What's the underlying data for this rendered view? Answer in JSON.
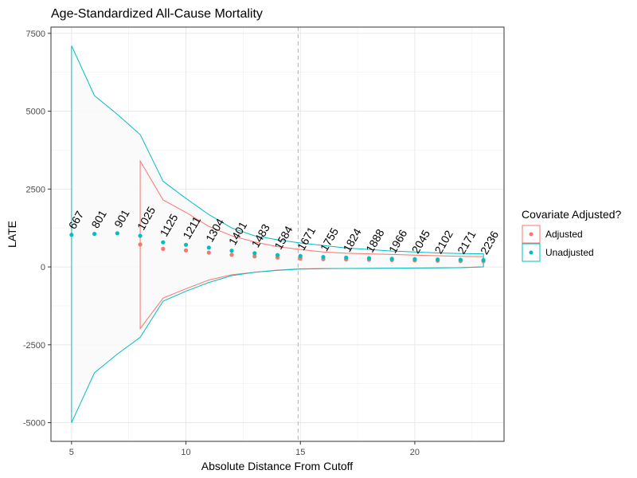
{
  "chart_data": {
    "type": "scatter",
    "title": "Age-Standardized All-Cause Mortality",
    "xlabel": "Absolute Distance From Cutoff",
    "ylabel": "LATE",
    "xlim": [
      4.1,
      23.9
    ],
    "ylim": [
      -5600,
      7700
    ],
    "x_ticks": [
      5,
      10,
      15,
      20
    ],
    "y_ticks": [
      -5000,
      -2500,
      0,
      2500,
      5000,
      7500
    ],
    "grid": true,
    "cutoff_line_x": 14.9,
    "legend": {
      "title": "Covariate Adjusted?",
      "position": "right",
      "entries": [
        "Adjusted",
        "Unadjusted"
      ]
    },
    "colors": {
      "Adjusted": "#F8766D",
      "Unadjusted": "#00BFC4",
      "ribbon": "#f9f9f9",
      "cutoff": "#b3b3b3"
    },
    "x": [
      5,
      6,
      7,
      8,
      9,
      10,
      11,
      12,
      13,
      14,
      15,
      16,
      17,
      18,
      19,
      20,
      21,
      22,
      23
    ],
    "n_labels": [
      "667",
      "801",
      "901",
      "1025",
      "1125",
      "1211",
      "1304",
      "1401",
      "1483",
      "1584",
      "1671",
      "1755",
      "1824",
      "1888",
      "1966",
      "2045",
      "2102",
      "2171",
      "2236"
    ],
    "series": [
      {
        "name": "Adjusted",
        "points": [
          [
            8,
            720
          ],
          [
            9,
            580
          ],
          [
            10,
            530
          ],
          [
            11,
            460
          ],
          [
            12,
            390
          ],
          [
            13,
            340
          ],
          [
            14,
            300
          ],
          [
            15,
            270
          ],
          [
            16,
            250
          ],
          [
            17,
            240
          ],
          [
            18,
            230
          ],
          [
            19,
            220
          ],
          [
            20,
            210
          ],
          [
            21,
            200
          ],
          [
            22,
            190
          ],
          [
            23,
            180
          ]
        ],
        "upper": [
          [
            8,
            3400
          ],
          [
            9,
            2150
          ],
          [
            10,
            1750
          ],
          [
            11,
            1300
          ],
          [
            12,
            1000
          ],
          [
            13,
            800
          ],
          [
            14,
            650
          ],
          [
            15,
            560
          ],
          [
            16,
            480
          ],
          [
            17,
            440
          ],
          [
            18,
            420
          ],
          [
            19,
            400
          ],
          [
            20,
            380
          ],
          [
            21,
            360
          ],
          [
            22,
            340
          ],
          [
            23,
            330
          ]
        ],
        "lower": [
          [
            8,
            -1980
          ],
          [
            9,
            -1000
          ],
          [
            10,
            -700
          ],
          [
            11,
            -420
          ],
          [
            12,
            -250
          ],
          [
            13,
            -170
          ],
          [
            14,
            -100
          ],
          [
            15,
            -60
          ],
          [
            16,
            -50
          ],
          [
            17,
            -50
          ],
          [
            18,
            -50
          ],
          [
            19,
            -40
          ],
          [
            20,
            -40
          ],
          [
            21,
            -30
          ],
          [
            22,
            -20
          ],
          [
            23,
            0
          ]
        ]
      },
      {
        "name": "Unadjusted",
        "points": [
          [
            5,
            1030
          ],
          [
            6,
            1060
          ],
          [
            7,
            1080
          ],
          [
            8,
            1000
          ],
          [
            9,
            790
          ],
          [
            10,
            710
          ],
          [
            11,
            620
          ],
          [
            12,
            520
          ],
          [
            13,
            440
          ],
          [
            14,
            380
          ],
          [
            15,
            350
          ],
          [
            16,
            320
          ],
          [
            17,
            300
          ],
          [
            18,
            280
          ],
          [
            19,
            260
          ],
          [
            20,
            250
          ],
          [
            21,
            240
          ],
          [
            22,
            230
          ],
          [
            23,
            220
          ]
        ],
        "upper": [
          [
            5,
            7100
          ],
          [
            6,
            5500
          ],
          [
            7,
            4900
          ],
          [
            8,
            4250
          ],
          [
            9,
            2750
          ],
          [
            10,
            2200
          ],
          [
            11,
            1680
          ],
          [
            12,
            1250
          ],
          [
            13,
            1000
          ],
          [
            14,
            870
          ],
          [
            15,
            770
          ],
          [
            16,
            690
          ],
          [
            17,
            610
          ],
          [
            18,
            560
          ],
          [
            19,
            510
          ],
          [
            20,
            480
          ],
          [
            21,
            450
          ],
          [
            22,
            430
          ],
          [
            23,
            420
          ]
        ],
        "lower": [
          [
            5,
            -5000
          ],
          [
            6,
            -3400
          ],
          [
            7,
            -2800
          ],
          [
            8,
            -2260
          ],
          [
            9,
            -1100
          ],
          [
            10,
            -780
          ],
          [
            11,
            -500
          ],
          [
            12,
            -280
          ],
          [
            13,
            -170
          ],
          [
            14,
            -110
          ],
          [
            15,
            -70
          ],
          [
            16,
            -55
          ],
          [
            17,
            -50
          ],
          [
            18,
            -45
          ],
          [
            19,
            -40
          ],
          [
            20,
            -35
          ],
          [
            21,
            -30
          ],
          [
            22,
            -25
          ],
          [
            23,
            0
          ]
        ]
      }
    ]
  }
}
